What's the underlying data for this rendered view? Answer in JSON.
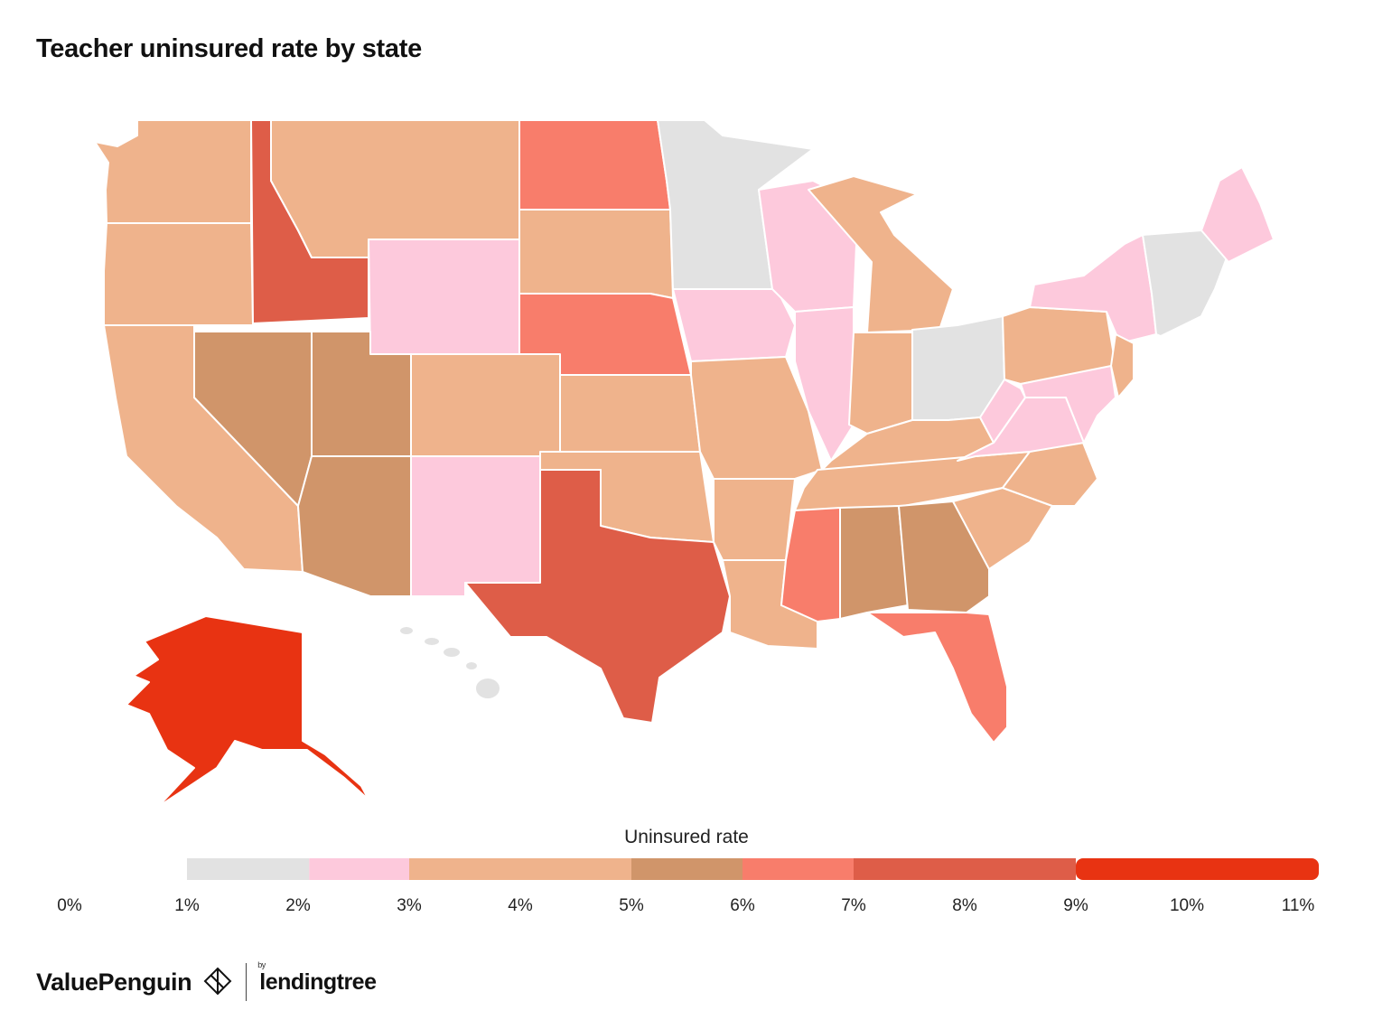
{
  "title": "Teacher uninsured rate by state",
  "legend": {
    "title": "Uninsured rate",
    "ticks": [
      "0%",
      "1%",
      "2%",
      "3%",
      "4%",
      "5%",
      "6%",
      "7%",
      "8%",
      "9%",
      "10%",
      "11%"
    ],
    "bins": [
      {
        "from": 1,
        "to": 2.1,
        "color": "#e2e2e2"
      },
      {
        "from": 2.1,
        "to": 3,
        "color": "#fdc9dc"
      },
      {
        "from": 3,
        "to": 5,
        "color": "#efb38c"
      },
      {
        "from": 5,
        "to": 6,
        "color": "#d0956a"
      },
      {
        "from": 6,
        "to": 7,
        "color": "#f87d6b"
      },
      {
        "from": 7,
        "to": 9,
        "color": "#de5d48"
      },
      {
        "from": 9,
        "to": 11,
        "color": "#e83312"
      }
    ]
  },
  "colors": {
    "gray": "#e2e2e2",
    "pink": "#fdc9dc",
    "peach": "#efb38c",
    "tan": "#d0956a",
    "salmon": "#f87d6b",
    "red": "#de5d48",
    "deep_red": "#e83312"
  },
  "states": {
    "WA": "peach",
    "OR": "peach",
    "CA": "peach",
    "NV": "tan",
    "ID": "red",
    "MT": "peach",
    "WY": "pink",
    "UT": "tan",
    "AZ": "tan",
    "CO": "peach",
    "NM": "pink",
    "ND": "salmon",
    "SD": "peach",
    "NE": "salmon",
    "KS": "peach",
    "OK": "peach",
    "TX": "red",
    "MN": "gray",
    "IA": "pink",
    "MO": "peach",
    "AR": "peach",
    "LA": "peach",
    "WI": "pink",
    "IL": "pink",
    "MI": "peach",
    "IN": "peach",
    "OH": "gray",
    "KY": "peach",
    "TN": "peach",
    "MS": "salmon",
    "AL": "tan",
    "GA": "tan",
    "FL": "salmon",
    "SC": "peach",
    "NC": "peach",
    "VA": "pink",
    "WV": "pink",
    "PA": "peach",
    "NY": "pink",
    "NJ": "peach",
    "NE_states": "gray",
    "ME": "pink",
    "AK": "deep_red",
    "HI": "gray",
    "MD": "pink",
    "DE": "peach"
  },
  "brand": {
    "valuepenguin": "ValuePenguin",
    "lendingtree_by": "by",
    "lendingtree": "lendingtree"
  }
}
